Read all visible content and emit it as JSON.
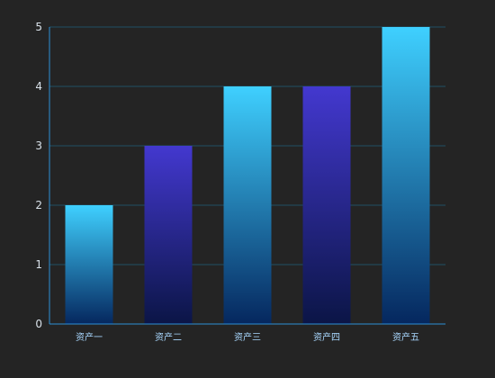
{
  "chart_data": {
    "type": "bar",
    "categories": [
      "资产一",
      "资产二",
      "资产三",
      "资产四",
      "资产五"
    ],
    "values": [
      2,
      3,
      4,
      4,
      5
    ],
    "ylim": [
      0,
      5
    ],
    "yticks": [
      0,
      1,
      2,
      3,
      4,
      5
    ],
    "grid": true,
    "legend": "none",
    "colors": {
      "background": "#242424",
      "grid": "#1f4f63",
      "axis": "#2d8fd6",
      "cyan_top": "#3fd0ff",
      "cyan_bottom": "#05275e",
      "indigo_top": "#4338cf",
      "indigo_bottom": "#0b1546",
      "y_label": "#d9e2ea",
      "x_label": "#a9d8ff"
    },
    "bar_palette": [
      "cyan",
      "indigo",
      "cyan",
      "indigo",
      "cyan"
    ]
  }
}
